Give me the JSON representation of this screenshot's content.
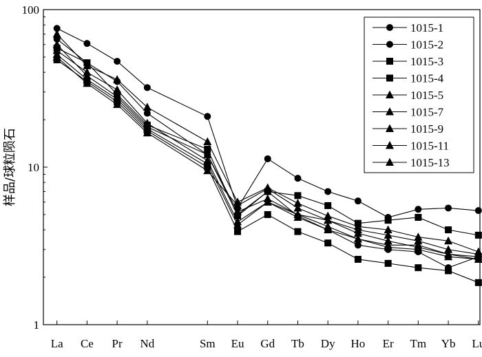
{
  "chart_data": {
    "type": "line",
    "title": "",
    "xlabel": "",
    "ylabel": "样品/球粒陨石",
    "y_scale": "log",
    "ylim": [
      1,
      100
    ],
    "y_ticks": [
      {
        "value": 1,
        "label": "1"
      },
      {
        "value": 10,
        "label": "10"
      },
      {
        "value": 100,
        "label": "100"
      }
    ],
    "categories": [
      "La",
      "Ce",
      "Pr",
      "Nd",
      "Sm",
      "Eu",
      "Gd",
      "Tb",
      "Dy",
      "Ho",
      "Er",
      "Tm",
      "Yb",
      "Lu"
    ],
    "category_positions": [
      1,
      2,
      3,
      4,
      6,
      7,
      8,
      9,
      10,
      11,
      12,
      13,
      14,
      15
    ],
    "grid": false,
    "legend_position": "top-right",
    "series": [
      {
        "name": "1015-1",
        "marker": "circle",
        "values": [
          76,
          61,
          47,
          32,
          21,
          5.5,
          11.3,
          8.5,
          7.0,
          6.1,
          4.8,
          5.4,
          5.5,
          5.3
        ]
      },
      {
        "name": "1015-2",
        "marker": "circle",
        "values": [
          65,
          46,
          35,
          22,
          12,
          5.0,
          7.0,
          4.9,
          4.0,
          3.2,
          3.0,
          2.9,
          2.3,
          2.7
        ]
      },
      {
        "name": "1015-3",
        "marker": "square",
        "values": [
          57,
          46,
          29,
          18.5,
          13,
          4.9,
          7.0,
          6.6,
          5.7,
          4.4,
          4.6,
          4.8,
          4.0,
          3.7
        ]
      },
      {
        "name": "1015-4",
        "marker": "square",
        "values": [
          48,
          35,
          26,
          17,
          10,
          3.9,
          5.0,
          3.9,
          3.3,
          2.6,
          2.45,
          2.3,
          2.2,
          1.85
        ]
      },
      {
        "name": "1015-5",
        "marker": "triangle",
        "values": [
          55,
          40,
          31,
          19,
          11,
          4.5,
          6.0,
          5.0,
          4.2,
          3.5,
          3.2,
          3.2,
          2.8,
          2.7
        ]
      },
      {
        "name": "1015-7",
        "marker": "triangle",
        "values": [
          70,
          44,
          36,
          24,
          14.5,
          6.0,
          7.4,
          5.9,
          4.9,
          4.2,
          4.0,
          3.6,
          3.4,
          2.9
        ]
      },
      {
        "name": "1015-9",
        "marker": "triangle",
        "values": [
          60,
          38,
          28,
          18,
          12,
          5.2,
          6.3,
          5.0,
          4.6,
          3.8,
          3.4,
          3.1,
          2.8,
          2.6
        ]
      },
      {
        "name": "1015-11",
        "marker": "triangle",
        "values": [
          52,
          36,
          27,
          17.5,
          10.5,
          4.3,
          6.0,
          4.8,
          4.0,
          3.5,
          3.1,
          3.0,
          2.7,
          2.6
        ]
      },
      {
        "name": "1015-13",
        "marker": "triangle",
        "values": [
          50,
          34,
          25,
          16.5,
          9.5,
          5.7,
          7.3,
          5.5,
          4.6,
          4.0,
          3.7,
          3.4,
          3.0,
          2.8
        ]
      }
    ]
  }
}
